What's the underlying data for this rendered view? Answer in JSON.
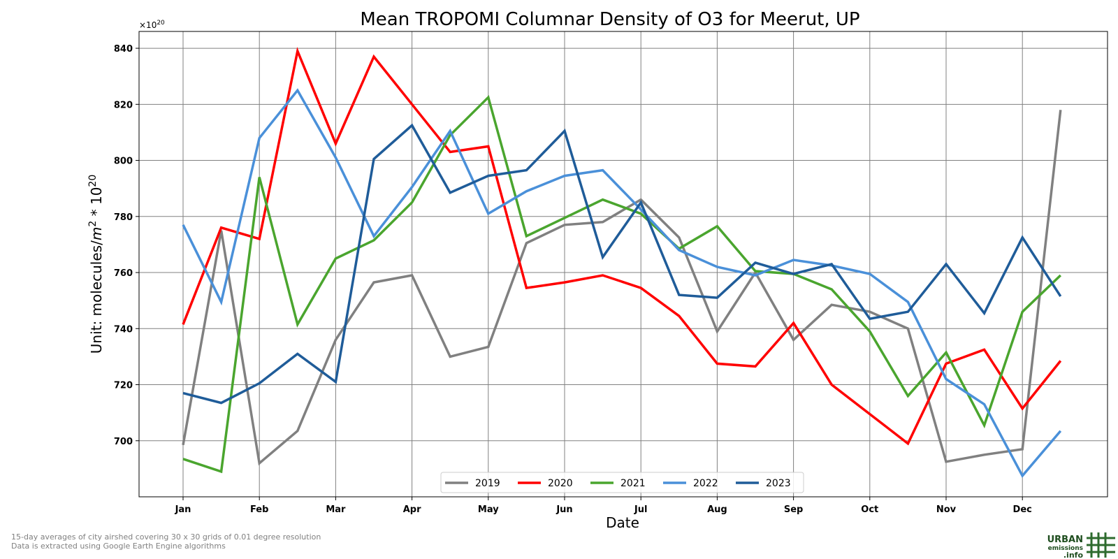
{
  "chart_data": {
    "type": "line",
    "title": "Mean TROPOMI Columnar Density of O3 for Meerut, UP",
    "xlabel": "Date",
    "ylabel_prefix": "Unit: molecules/",
    "ylabel_unit_base": "m",
    "ylabel_unit_exp": "2",
    "ylabel_mid": " * 10",
    "ylabel_exp": "20",
    "offset_base": "×10",
    "offset_exp": "20",
    "ylim": [
      680,
      846
    ],
    "yticks": [
      700,
      720,
      740,
      760,
      780,
      800,
      820,
      840
    ],
    "xtick_labels": [
      "Jan",
      "Feb",
      "Mar",
      "Apr",
      "May",
      "Jun",
      "Jul",
      "Aug",
      "Sep",
      "Oct",
      "Nov",
      "Dec"
    ],
    "grid": true,
    "legend_position": "bottom-center",
    "x": [
      "Jan 1",
      "Jan 15",
      "Feb 1",
      "Feb 15",
      "Mar 1",
      "Mar 15",
      "Apr 1",
      "Apr 15",
      "May 1",
      "May 15",
      "Jun 1",
      "Jun 15",
      "Jul 1",
      "Jul 15",
      "Aug 1",
      "Aug 15",
      "Sep 1",
      "Sep 15",
      "Oct 1",
      "Oct 15",
      "Nov 1",
      "Nov 15",
      "Dec 1",
      "Dec 15"
    ],
    "series": [
      {
        "name": "2019",
        "color": "#808080",
        "values": [
          698.5,
          775.0,
          692.0,
          703.5,
          736.0,
          756.5,
          759.0,
          730.0,
          733.5,
          770.5,
          777.0,
          778.0,
          786.0,
          772.5,
          739.0,
          760.0,
          736.0,
          748.5,
          746.0,
          740.0,
          692.5,
          695.0,
          697.0,
          818.0
        ]
      },
      {
        "name": "2020",
        "color": "#ff0000",
        "values": [
          741.5,
          776.0,
          772.0,
          839.0,
          806.0,
          837.0,
          820.0,
          803.0,
          805.0,
          754.5,
          756.5,
          759.0,
          754.5,
          744.5,
          727.5,
          726.5,
          742.0,
          720.0,
          709.5,
          699.0,
          727.5,
          732.5,
          711.5,
          728.5
        ]
      },
      {
        "name": "2021",
        "color": "#4aa52e",
        "values": [
          693.5,
          689.0,
          794.0,
          741.5,
          765.0,
          771.5,
          785.0,
          809.0,
          822.5,
          773.0,
          779.5,
          786.0,
          781.0,
          768.5,
          776.5,
          760.5,
          759.5,
          754.0,
          739.0,
          716.0,
          731.5,
          705.5,
          746.0,
          759.0
        ]
      },
      {
        "name": "2022",
        "color": "#4a90d9",
        "values": [
          777.0,
          749.5,
          808.0,
          825.0,
          801.0,
          773.0,
          790.5,
          810.5,
          781.0,
          789.0,
          794.5,
          796.5,
          782.5,
          768.0,
          762.0,
          759.0,
          764.5,
          762.5,
          759.5,
          749.5,
          722.0,
          713.0,
          687.5,
          703.5
        ]
      },
      {
        "name": "2023",
        "color": "#1f5c99",
        "values": [
          717.0,
          713.5,
          720.5,
          731.0,
          721.0,
          800.5,
          812.5,
          788.5,
          794.5,
          796.5,
          810.5,
          765.5,
          785.0,
          752.0,
          751.0,
          763.5,
          759.5,
          763.0,
          743.5,
          746.0,
          763.0,
          745.5,
          772.5,
          751.5
        ]
      }
    ]
  },
  "footnote": {
    "line1": "15-day averages of city airshed covering 30 x 30 grids of 0.01 degree resolution",
    "line2": "Data is extracted using Google Earth Engine algorithms"
  },
  "logo": {
    "line1": "URBAN",
    "line2": "emissions",
    "line3": ".info"
  }
}
